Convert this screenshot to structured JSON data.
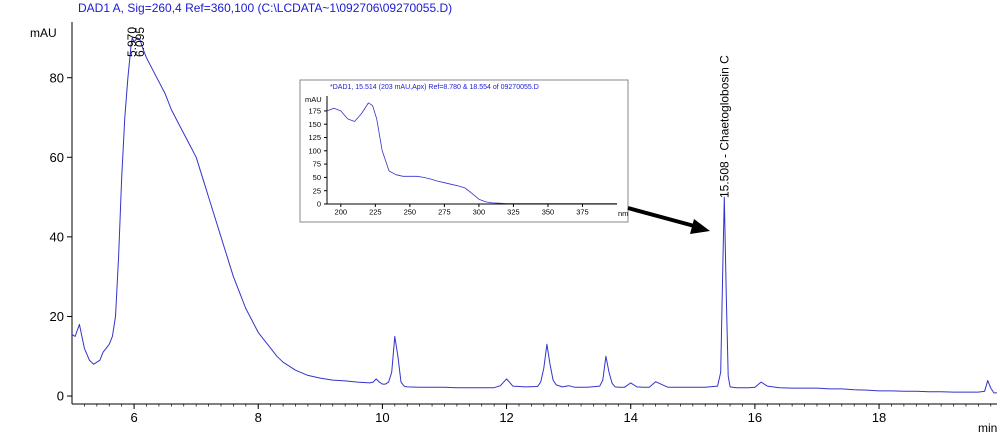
{
  "chart_data": [
    {
      "type": "line",
      "title": "DAD1 A, Sig=260,4 Ref=360,100 (C:\\LCDATA~1\\092706\\09270055.D)",
      "xlabel": "min",
      "ylabel": "mAU",
      "xlim": [
        5.0,
        19.9
      ],
      "ylim": [
        -2,
        94
      ],
      "x_ticks": [
        "6",
        "8",
        "10",
        "12",
        "14",
        "16",
        "18"
      ],
      "y_ticks": [
        "0",
        "20",
        "40",
        "60",
        "80"
      ],
      "grid": false,
      "color": "#3333cc",
      "series": [
        {
          "x": [
            5.0,
            5.05,
            5.12,
            5.2,
            5.28,
            5.35,
            5.45,
            5.5,
            5.55,
            5.6,
            5.65,
            5.7,
            5.75,
            5.8,
            5.85,
            5.9,
            5.95,
            5.97,
            6.0,
            6.05,
            6.095,
            6.15,
            6.2,
            6.3,
            6.4,
            6.5,
            6.6,
            6.7,
            6.8,
            6.9,
            7.0,
            7.1,
            7.2,
            7.3,
            7.4,
            7.5,
            7.6,
            7.7,
            7.8,
            7.9,
            8.0,
            8.1,
            8.2,
            8.3,
            8.4,
            8.6,
            8.8,
            9.0,
            9.2,
            9.4,
            9.6,
            9.8,
            9.85,
            9.9,
            9.95,
            10.0,
            10.05,
            10.1,
            10.15,
            10.2,
            10.25,
            10.3,
            10.35,
            10.4,
            10.6,
            10.8,
            11.0,
            11.2,
            11.4,
            11.6,
            11.8,
            11.9,
            12.0,
            12.1,
            12.3,
            12.5,
            12.55,
            12.6,
            12.65,
            12.7,
            12.75,
            12.8,
            12.9,
            13.0,
            13.1,
            13.3,
            13.5,
            13.55,
            13.6,
            13.65,
            13.7,
            13.75,
            13.8,
            13.9,
            14.0,
            14.1,
            14.2,
            14.3,
            14.4,
            14.6,
            14.8,
            15.0,
            15.2,
            15.4,
            15.45,
            15.48,
            15.508,
            15.54,
            15.57,
            15.6,
            15.7,
            15.9,
            16.0,
            16.1,
            16.2,
            16.4,
            16.6,
            16.8,
            17.0,
            17.2,
            17.4,
            17.6,
            17.8,
            18.0,
            18.2,
            18.4,
            18.6,
            18.8,
            19.0,
            19.2,
            19.4,
            19.6,
            19.7,
            19.75,
            19.8,
            19.85,
            19.9
          ],
          "values": [
            15.5,
            15,
            18,
            12,
            9,
            8,
            9,
            11,
            12,
            13,
            15,
            20,
            35,
            55,
            70,
            80,
            88,
            90,
            89,
            90,
            89.5,
            87,
            85,
            82,
            79,
            76,
            72,
            69,
            66,
            63,
            60,
            55,
            50,
            45,
            40,
            35,
            30,
            26,
            22,
            19,
            16,
            14,
            12,
            10,
            8.5,
            6.5,
            5.2,
            4.5,
            4,
            3.8,
            3.5,
            3.3,
            3.5,
            4.3,
            3.5,
            3,
            3,
            3.5,
            6,
            15,
            10,
            3.5,
            2.5,
            2.3,
            2.2,
            2.2,
            2.2,
            2.1,
            2.1,
            2.1,
            2.1,
            2.6,
            4.3,
            2.5,
            2.3,
            2.4,
            3.5,
            7,
            13,
            8,
            4,
            2.8,
            2.3,
            2.6,
            2.2,
            2.2,
            2.5,
            4,
            10,
            6,
            3.2,
            2.3,
            2.2,
            2.2,
            3.3,
            2.3,
            2.2,
            2.2,
            3.6,
            2.2,
            2.2,
            2.2,
            2.2,
            2.5,
            6,
            30,
            50,
            25,
            5,
            2.3,
            2.1,
            2.1,
            2.2,
            3.5,
            2.5,
            2.1,
            2,
            2,
            2,
            1.8,
            1.8,
            1.6,
            1.5,
            1.3,
            1.3,
            1.2,
            1.2,
            1.1,
            1.1,
            1.0,
            1.0,
            1.0,
            1.2,
            3.9,
            2,
            0.8,
            0.8
          ]
        }
      ],
      "annotations": [
        {
          "x": 5.97,
          "label": "5.970"
        },
        {
          "x": 6.095,
          "label": "6.095"
        },
        {
          "x": 15.508,
          "label": "15.508 -  Chaetoglobosin C"
        }
      ]
    },
    {
      "type": "line",
      "title": "*DAD1, 15.514 (203 mAU,Apx) Ref=8.780 & 18.554 of 09270055.D",
      "xlabel": "nm",
      "ylabel": "mAU",
      "xlim": [
        190,
        400
      ],
      "ylim": [
        0,
        203
      ],
      "x_ticks": [
        "200",
        "225",
        "250",
        "275",
        "300",
        "325",
        "350",
        "375"
      ],
      "y_ticks": [
        "0",
        "25",
        "50",
        "75",
        "100",
        "125",
        "150",
        "175"
      ],
      "grid": false,
      "color": "#3333cc",
      "series": [
        {
          "x": [
            190,
            195,
            200,
            205,
            210,
            215,
            220,
            223,
            226,
            230,
            235,
            240,
            245,
            250,
            255,
            260,
            265,
            270,
            275,
            280,
            285,
            290,
            295,
            300,
            305,
            310,
            320,
            330,
            340,
            350,
            360,
            370,
            380,
            390,
            400
          ],
          "values": [
            175,
            180,
            175,
            160,
            155,
            170,
            190,
            185,
            160,
            100,
            62,
            55,
            52,
            52,
            52,
            50,
            47,
            43,
            40,
            37,
            34,
            30,
            20,
            9,
            4,
            2,
            1,
            1,
            1,
            1,
            1,
            1,
            1,
            1,
            1
          ]
        }
      ]
    }
  ]
}
